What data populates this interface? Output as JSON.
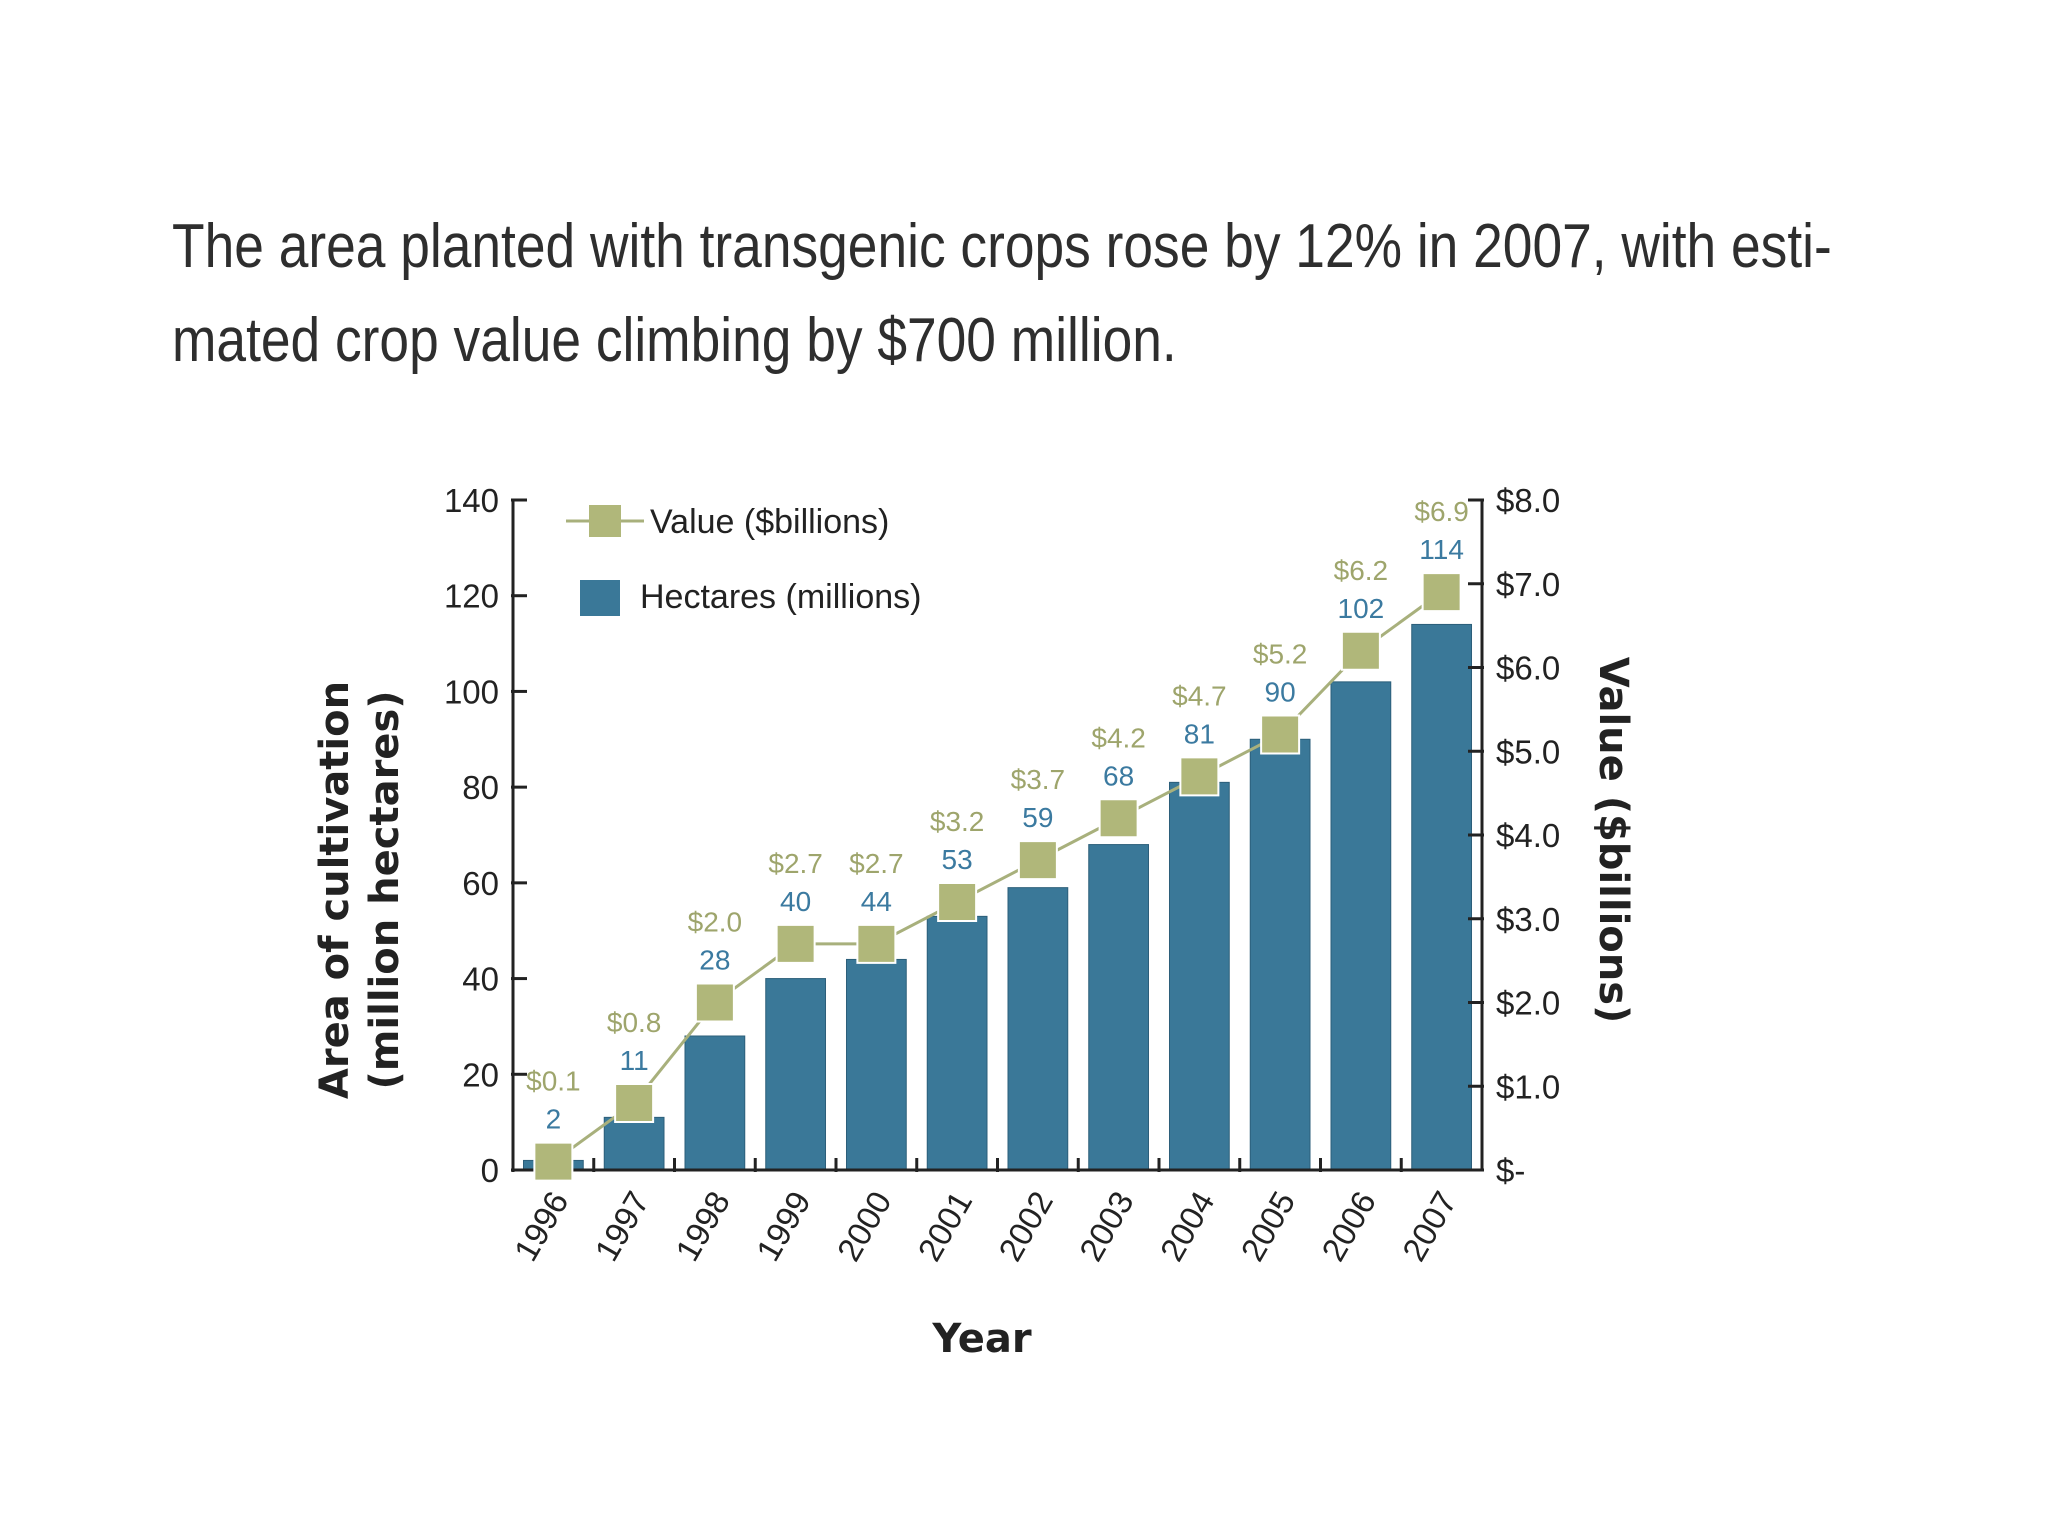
{
  "caption": {
    "line1": "The area planted with transgenic crops rose by 12% in 2007, with esti-",
    "line2": "mated crop value climbing by $700 million."
  },
  "colors": {
    "bar": "#3a7898",
    "bar_edge": "#2c5f7a",
    "line": "#a8b07c",
    "marker": "#b0b77a",
    "value_label": "#9ea56c",
    "hectare_label": "#3b7aa0"
  },
  "chart_data": {
    "type": "bar",
    "categories": [
      "1996",
      "1997",
      "1998",
      "1999",
      "2000",
      "2001",
      "2002",
      "2003",
      "2004",
      "2005",
      "2006",
      "2007"
    ],
    "series": [
      {
        "name": "Hectares (millions)",
        "type": "bar",
        "axis": "left",
        "values": [
          2,
          11,
          28,
          40,
          44,
          53,
          59,
          68,
          81,
          90,
          102,
          114
        ],
        "labels": [
          "2",
          "11",
          "28",
          "40",
          "44",
          "53",
          "59",
          "68",
          "81",
          "90",
          "102",
          "114"
        ]
      },
      {
        "name": "Value ($billions)",
        "type": "line",
        "axis": "right",
        "values": [
          0.1,
          0.8,
          2.0,
          2.7,
          2.7,
          3.2,
          3.7,
          4.2,
          4.7,
          5.2,
          6.2,
          6.9
        ],
        "labels": [
          "$0.1",
          "$0.8",
          "$2.0",
          "$2.7",
          "$2.7",
          "$3.2",
          "$3.7",
          "$4.2",
          "$4.7",
          "$5.2",
          "$6.2",
          "$6.9"
        ]
      }
    ],
    "xlabel": "Year",
    "ylabel_left_line1": "Area of cultivation",
    "ylabel_left_line2": "(million hectares)",
    "ylabel_right": "Value ($billions)",
    "ylim_left": [
      0,
      140
    ],
    "ylim_right": [
      0,
      8
    ],
    "left_ticks": [
      "0",
      "20",
      "40",
      "60",
      "80",
      "100",
      "120",
      "140"
    ],
    "right_ticks": [
      "$-",
      "$1.0",
      "$2.0",
      "$3.0",
      "$4.0",
      "$5.0",
      "$6.0",
      "$7.0",
      "$8.0"
    ],
    "legend_placement": "top-left",
    "grid": false
  }
}
